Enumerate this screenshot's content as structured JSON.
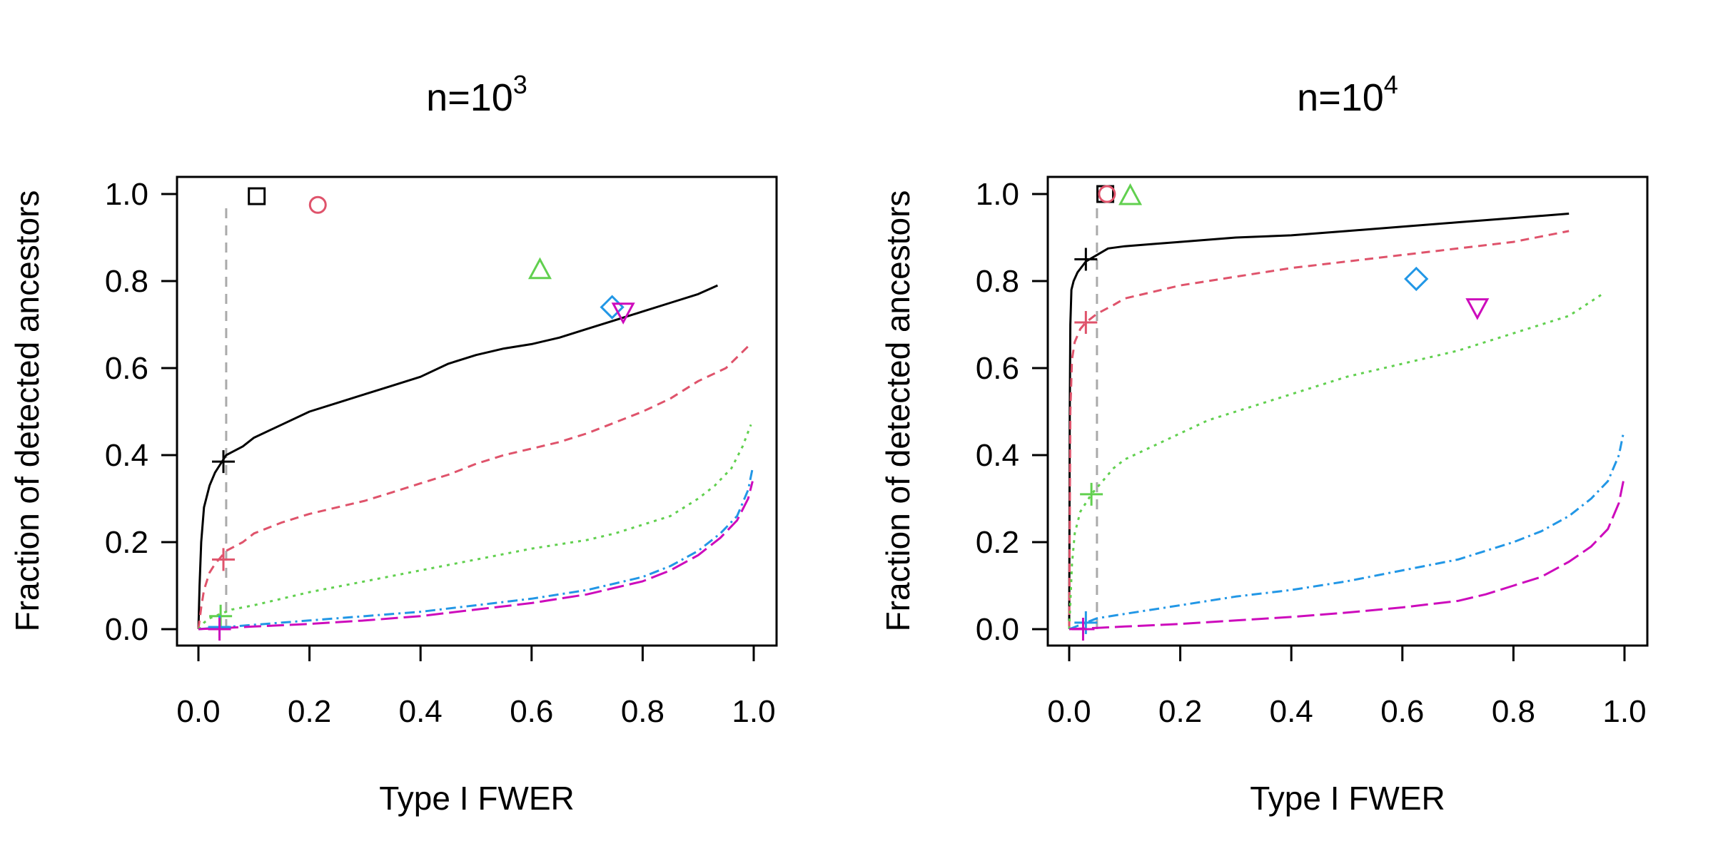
{
  "chart_data": [
    {
      "type": "line",
      "title": "n=10",
      "title_exponent": "3",
      "xlabel": "Type I FWER",
      "ylabel": "Fraction of detected ancestors",
      "xlim": [
        0,
        1
      ],
      "ylim": [
        0,
        1
      ],
      "xticks": [
        "0.0",
        "0.2",
        "0.4",
        "0.6",
        "0.8",
        "1.0"
      ],
      "yticks": [
        "0.0",
        "0.2",
        "0.4",
        "0.6",
        "0.8",
        "1.0"
      ],
      "reference_line_x": 0.05,
      "series": [
        {
          "name": "black",
          "color": "#000000",
          "dash": "solid",
          "x": [
            0,
            0.002,
            0.005,
            0.01,
            0.02,
            0.03,
            0.05,
            0.08,
            0.1,
            0.15,
            0.2,
            0.25,
            0.3,
            0.35,
            0.4,
            0.45,
            0.5,
            0.55,
            0.6,
            0.65,
            0.7,
            0.75,
            0.8,
            0.85,
            0.9,
            0.935
          ],
          "y": [
            0,
            0.1,
            0.2,
            0.28,
            0.33,
            0.36,
            0.4,
            0.42,
            0.44,
            0.47,
            0.5,
            0.52,
            0.54,
            0.56,
            0.58,
            0.61,
            0.63,
            0.645,
            0.655,
            0.67,
            0.69,
            0.71,
            0.73,
            0.75,
            0.77,
            0.79
          ],
          "marker": {
            "shape": "plus",
            "x": 0.045,
            "y": 0.385
          },
          "point": {
            "shape": "square",
            "x": 0.105,
            "y": 0.995
          }
        },
        {
          "name": "red",
          "color": "#DF536B",
          "dash": "12,8",
          "x": [
            0,
            0.005,
            0.01,
            0.02,
            0.03,
            0.05,
            0.08,
            0.1,
            0.15,
            0.2,
            0.25,
            0.3,
            0.35,
            0.4,
            0.45,
            0.5,
            0.55,
            0.6,
            0.65,
            0.7,
            0.75,
            0.8,
            0.85,
            0.9,
            0.95,
            0.99
          ],
          "y": [
            0,
            0.05,
            0.09,
            0.13,
            0.15,
            0.18,
            0.2,
            0.22,
            0.245,
            0.265,
            0.28,
            0.295,
            0.315,
            0.335,
            0.355,
            0.38,
            0.4,
            0.415,
            0.43,
            0.45,
            0.475,
            0.5,
            0.53,
            0.57,
            0.6,
            0.65
          ],
          "marker": {
            "shape": "plus",
            "x": 0.045,
            "y": 0.16
          },
          "point": {
            "shape": "circle",
            "x": 0.215,
            "y": 0.975
          }
        },
        {
          "name": "green",
          "color": "#61D04F",
          "dash": "4,7",
          "x": [
            0,
            0.01,
            0.02,
            0.04,
            0.06,
            0.1,
            0.15,
            0.2,
            0.3,
            0.4,
            0.5,
            0.6,
            0.7,
            0.75,
            0.8,
            0.85,
            0.9,
            0.93,
            0.96,
            0.98,
            0.995
          ],
          "y": [
            0,
            0.015,
            0.025,
            0.035,
            0.045,
            0.055,
            0.07,
            0.085,
            0.11,
            0.135,
            0.16,
            0.185,
            0.205,
            0.22,
            0.24,
            0.26,
            0.3,
            0.33,
            0.37,
            0.42,
            0.47
          ],
          "marker": {
            "shape": "plus",
            "x": 0.04,
            "y": 0.03
          },
          "point": {
            "shape": "triangle",
            "x": 0.615,
            "y": 0.825
          }
        },
        {
          "name": "blue",
          "color": "#2297E6",
          "dash": "14,6,3,6",
          "x": [
            0,
            0.05,
            0.1,
            0.2,
            0.3,
            0.4,
            0.5,
            0.6,
            0.7,
            0.75,
            0.8,
            0.85,
            0.9,
            0.94,
            0.97,
            0.99,
            0.998
          ],
          "y": [
            0,
            0.005,
            0.01,
            0.02,
            0.03,
            0.04,
            0.055,
            0.07,
            0.09,
            0.105,
            0.12,
            0.145,
            0.18,
            0.22,
            0.26,
            0.32,
            0.37
          ],
          "marker": {
            "shape": "plus",
            "x": 0.038,
            "y": 0.005
          },
          "point": {
            "shape": "diamond",
            "x": 0.745,
            "y": 0.74
          }
        },
        {
          "name": "magenta",
          "color": "#CD0BBC",
          "dash": "24,8",
          "x": [
            0,
            0.05,
            0.1,
            0.2,
            0.3,
            0.4,
            0.5,
            0.6,
            0.7,
            0.75,
            0.8,
            0.85,
            0.9,
            0.94,
            0.97,
            0.99,
            0.998
          ],
          "y": [
            0,
            0.003,
            0.006,
            0.012,
            0.02,
            0.03,
            0.045,
            0.06,
            0.08,
            0.095,
            0.11,
            0.135,
            0.17,
            0.21,
            0.25,
            0.3,
            0.34
          ],
          "marker": {
            "shape": "plus",
            "x": 0.038,
            "y": 0.0
          },
          "point": {
            "shape": "triangle-down",
            "x": 0.765,
            "y": 0.73
          }
        }
      ]
    },
    {
      "type": "line",
      "title": "n=10",
      "title_exponent": "4",
      "xlabel": "Type I FWER",
      "ylabel": "Fraction of detected ancestors",
      "xlim": [
        0,
        1
      ],
      "ylim": [
        0,
        1
      ],
      "xticks": [
        "0.0",
        "0.2",
        "0.4",
        "0.6",
        "0.8",
        "1.0"
      ],
      "yticks": [
        "0.0",
        "0.2",
        "0.4",
        "0.6",
        "0.8",
        "1.0"
      ],
      "reference_line_x": 0.05,
      "series": [
        {
          "name": "black",
          "color": "#000000",
          "dash": "solid",
          "x": [
            0,
            0.001,
            0.002,
            0.004,
            0.008,
            0.015,
            0.03,
            0.05,
            0.07,
            0.1,
            0.15,
            0.2,
            0.3,
            0.4,
            0.5,
            0.6,
            0.7,
            0.8,
            0.9
          ],
          "y": [
            0,
            0.5,
            0.7,
            0.78,
            0.8,
            0.82,
            0.845,
            0.86,
            0.875,
            0.88,
            0.885,
            0.89,
            0.9,
            0.905,
            0.915,
            0.925,
            0.935,
            0.945,
            0.955
          ],
          "marker": {
            "shape": "plus",
            "x": 0.03,
            "y": 0.85
          },
          "point": {
            "shape": "square",
            "x": 0.065,
            "y": 1.0
          }
        },
        {
          "name": "red",
          "color": "#DF536B",
          "dash": "12,8",
          "x": [
            0,
            0.002,
            0.005,
            0.01,
            0.02,
            0.03,
            0.05,
            0.08,
            0.1,
            0.15,
            0.2,
            0.3,
            0.4,
            0.5,
            0.6,
            0.7,
            0.8,
            0.9
          ],
          "y": [
            0,
            0.5,
            0.62,
            0.66,
            0.69,
            0.705,
            0.725,
            0.745,
            0.76,
            0.775,
            0.79,
            0.81,
            0.83,
            0.845,
            0.86,
            0.875,
            0.89,
            0.915
          ],
          "marker": {
            "shape": "plus",
            "x": 0.03,
            "y": 0.705
          },
          "point": {
            "shape": "circle",
            "x": 0.068,
            "y": 1.0
          }
        },
        {
          "name": "green",
          "color": "#61D04F",
          "dash": "4,7",
          "x": [
            0,
            0.005,
            0.01,
            0.02,
            0.03,
            0.04,
            0.06,
            0.08,
            0.1,
            0.15,
            0.2,
            0.25,
            0.3,
            0.4,
            0.5,
            0.6,
            0.7,
            0.8,
            0.9,
            0.96
          ],
          "y": [
            0,
            0.15,
            0.22,
            0.27,
            0.29,
            0.31,
            0.34,
            0.37,
            0.39,
            0.42,
            0.45,
            0.48,
            0.5,
            0.54,
            0.58,
            0.61,
            0.64,
            0.68,
            0.72,
            0.77
          ],
          "marker": {
            "shape": "plus",
            "x": 0.04,
            "y": 0.31
          },
          "point": {
            "shape": "triangle",
            "x": 0.11,
            "y": 0.995
          }
        },
        {
          "name": "blue",
          "color": "#2297E6",
          "dash": "14,6,3,6",
          "x": [
            0,
            0.01,
            0.02,
            0.03,
            0.05,
            0.1,
            0.2,
            0.3,
            0.4,
            0.5,
            0.6,
            0.7,
            0.8,
            0.85,
            0.9,
            0.94,
            0.97,
            0.99,
            0.998
          ],
          "y": [
            0,
            0.005,
            0.01,
            0.015,
            0.025,
            0.035,
            0.055,
            0.075,
            0.09,
            0.11,
            0.135,
            0.16,
            0.2,
            0.225,
            0.26,
            0.3,
            0.34,
            0.4,
            0.45
          ],
          "marker": {
            "shape": "plus",
            "x": 0.03,
            "y": 0.015
          },
          "point": {
            "shape": "diamond",
            "x": 0.625,
            "y": 0.805
          }
        },
        {
          "name": "magenta",
          "color": "#CD0BBC",
          "dash": "24,8",
          "x": [
            0,
            0.05,
            0.1,
            0.2,
            0.3,
            0.4,
            0.5,
            0.6,
            0.7,
            0.75,
            0.8,
            0.85,
            0.9,
            0.94,
            0.97,
            0.99,
            0.998
          ],
          "y": [
            0,
            0.003,
            0.006,
            0.012,
            0.02,
            0.028,
            0.038,
            0.05,
            0.065,
            0.08,
            0.1,
            0.12,
            0.155,
            0.19,
            0.23,
            0.29,
            0.34
          ],
          "marker": {
            "shape": "plus",
            "x": 0.025,
            "y": 0.0
          },
          "point": {
            "shape": "triangle-down",
            "x": 0.735,
            "y": 0.74
          }
        }
      ]
    }
  ]
}
